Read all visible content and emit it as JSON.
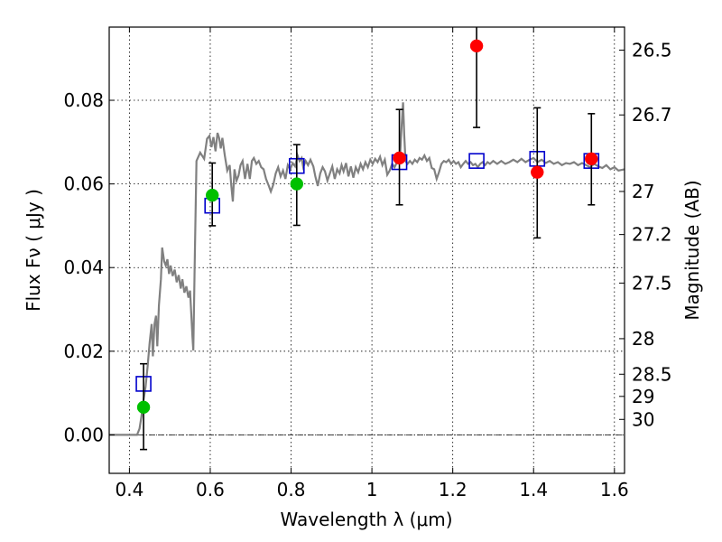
{
  "chart_data": {
    "type": "scatter",
    "title": "",
    "xlabel": "Wavelength  λ (μm)",
    "ylabel": "Flux  Fν  ( μJy )",
    "ylabel_right": "Magnitude (AB)",
    "xlim": [
      0.35,
      1.625
    ],
    "ylim": [
      -0.0092,
      0.0975
    ],
    "grid": true,
    "x_ticks": [
      {
        "value": 0.4,
        "label": "0.4"
      },
      {
        "value": 0.6,
        "label": "0.6"
      },
      {
        "value": 0.8,
        "label": "0.8"
      },
      {
        "value": 1.0,
        "label": "1"
      },
      {
        "value": 1.2,
        "label": "1.2"
      },
      {
        "value": 1.4,
        "label": "1.4"
      },
      {
        "value": 1.6,
        "label": "1.6"
      }
    ],
    "y_ticks": [
      {
        "value": 0.0,
        "label": "0.00"
      },
      {
        "value": 0.02,
        "label": "0.02"
      },
      {
        "value": 0.04,
        "label": "0.04"
      },
      {
        "value": 0.06,
        "label": "0.06"
      },
      {
        "value": 0.08,
        "label": "0.08"
      }
    ],
    "mag_ticks": [
      {
        "flux": 0.092,
        "label": "26.5"
      },
      {
        "flux": 0.0765,
        "label": "26.7"
      },
      {
        "flux": 0.0582,
        "label": "27"
      },
      {
        "flux": 0.0479,
        "label": "27.2"
      },
      {
        "flux": 0.0363,
        "label": "27.5"
      },
      {
        "flux": 0.023,
        "label": "28"
      },
      {
        "flux": 0.0145,
        "label": "28.5"
      },
      {
        "flux": 0.0092,
        "label": "29"
      },
      {
        "flux": 0.0037,
        "label": "30"
      }
    ],
    "zero_line": true,
    "model_color": "#808080",
    "model_spectrum": [
      [
        0.35,
        0.0
      ],
      [
        0.419,
        0.0
      ],
      [
        0.425,
        0.0015
      ],
      [
        0.43,
        0.0045
      ],
      [
        0.435,
        0.0085
      ],
      [
        0.44,
        0.0115
      ],
      [
        0.445,
        0.0162
      ],
      [
        0.45,
        0.022
      ],
      [
        0.455,
        0.0265
      ],
      [
        0.458,
        0.0188
      ],
      [
        0.462,
        0.0265
      ],
      [
        0.466,
        0.0285
      ],
      [
        0.469,
        0.0212
      ],
      [
        0.473,
        0.031
      ],
      [
        0.478,
        0.0372
      ],
      [
        0.481,
        0.0448
      ],
      [
        0.486,
        0.0415
      ],
      [
        0.49,
        0.0405
      ],
      [
        0.494,
        0.042
      ],
      [
        0.498,
        0.0385
      ],
      [
        0.502,
        0.0405
      ],
      [
        0.507,
        0.038
      ],
      [
        0.512,
        0.0395
      ],
      [
        0.517,
        0.0365
      ],
      [
        0.522,
        0.0382
      ],
      [
        0.527,
        0.035
      ],
      [
        0.531,
        0.0372
      ],
      [
        0.536,
        0.034
      ],
      [
        0.541,
        0.0355
      ],
      [
        0.546,
        0.0328
      ],
      [
        0.55,
        0.0345
      ],
      [
        0.556,
        0.0232
      ],
      [
        0.558,
        0.0202
      ],
      [
        0.562,
        0.043
      ],
      [
        0.566,
        0.0655
      ],
      [
        0.575,
        0.0675
      ],
      [
        0.585,
        0.066
      ],
      [
        0.592,
        0.0708
      ],
      [
        0.598,
        0.0715
      ],
      [
        0.603,
        0.0688
      ],
      [
        0.608,
        0.0712
      ],
      [
        0.613,
        0.0678
      ],
      [
        0.618,
        0.0722
      ],
      [
        0.622,
        0.071
      ],
      [
        0.626,
        0.0685
      ],
      [
        0.63,
        0.071
      ],
      [
        0.636,
        0.0668
      ],
      [
        0.642,
        0.0632
      ],
      [
        0.648,
        0.0645
      ],
      [
        0.652,
        0.0598
      ],
      [
        0.656,
        0.0558
      ],
      [
        0.66,
        0.0635
      ],
      [
        0.665,
        0.0608
      ],
      [
        0.67,
        0.062
      ],
      [
        0.675,
        0.0645
      ],
      [
        0.68,
        0.0655
      ],
      [
        0.686,
        0.0612
      ],
      [
        0.692,
        0.0648
      ],
      [
        0.698,
        0.0612
      ],
      [
        0.703,
        0.0655
      ],
      [
        0.708,
        0.0662
      ],
      [
        0.714,
        0.0648
      ],
      [
        0.72,
        0.0655
      ],
      [
        0.726,
        0.064
      ],
      [
        0.732,
        0.0635
      ],
      [
        0.738,
        0.0612
      ],
      [
        0.745,
        0.0595
      ],
      [
        0.75,
        0.0582
      ],
      [
        0.756,
        0.0598
      ],
      [
        0.762,
        0.0625
      ],
      [
        0.768,
        0.064
      ],
      [
        0.774,
        0.0618
      ],
      [
        0.78,
        0.0632
      ],
      [
        0.786,
        0.0612
      ],
      [
        0.792,
        0.0645
      ],
      [
        0.798,
        0.0635
      ],
      [
        0.804,
        0.065
      ],
      [
        0.81,
        0.0642
      ],
      [
        0.816,
        0.0668
      ],
      [
        0.821,
        0.0655
      ],
      [
        0.826,
        0.0662
      ],
      [
        0.83,
        0.064
      ],
      [
        0.836,
        0.0655
      ],
      [
        0.842,
        0.0645
      ],
      [
        0.848,
        0.0658
      ],
      [
        0.855,
        0.0642
      ],
      [
        0.86,
        0.0618
      ],
      [
        0.866,
        0.0595
      ],
      [
        0.872,
        0.0625
      ],
      [
        0.878,
        0.064
      ],
      [
        0.884,
        0.063
      ],
      [
        0.89,
        0.0608
      ],
      [
        0.896,
        0.0625
      ],
      [
        0.902,
        0.0642
      ],
      [
        0.908,
        0.0612
      ],
      [
        0.914,
        0.0635
      ],
      [
        0.92,
        0.0625
      ],
      [
        0.925,
        0.0645
      ],
      [
        0.93,
        0.063
      ],
      [
        0.936,
        0.065
      ],
      [
        0.942,
        0.0618
      ],
      [
        0.948,
        0.0642
      ],
      [
        0.954,
        0.0615
      ],
      [
        0.96,
        0.064
      ],
      [
        0.966,
        0.0628
      ],
      [
        0.972,
        0.0648
      ],
      [
        0.978,
        0.0635
      ],
      [
        0.984,
        0.0652
      ],
      [
        0.99,
        0.064
      ],
      [
        0.996,
        0.0658
      ],
      [
        1.002,
        0.0648
      ],
      [
        1.008,
        0.066
      ],
      [
        1.014,
        0.0652
      ],
      [
        1.02,
        0.0665
      ],
      [
        1.026,
        0.0645
      ],
      [
        1.032,
        0.0658
      ],
      [
        1.038,
        0.0622
      ],
      [
        1.044,
        0.0632
      ],
      [
        1.05,
        0.0648
      ],
      [
        1.056,
        0.064
      ],
      [
        1.062,
        0.0652
      ],
      [
        1.066,
        0.066
      ],
      [
        1.07,
        0.0672
      ],
      [
        1.074,
        0.0745
      ],
      [
        1.077,
        0.0795
      ],
      [
        1.08,
        0.0718
      ],
      [
        1.083,
        0.0655
      ],
      [
        1.088,
        0.0648
      ],
      [
        1.094,
        0.0655
      ],
      [
        1.1,
        0.0648
      ],
      [
        1.106,
        0.0658
      ],
      [
        1.112,
        0.0652
      ],
      [
        1.118,
        0.0662
      ],
      [
        1.124,
        0.0658
      ],
      [
        1.13,
        0.0668
      ],
      [
        1.136,
        0.0655
      ],
      [
        1.142,
        0.0662
      ],
      [
        1.148,
        0.0638
      ],
      [
        1.154,
        0.0635
      ],
      [
        1.16,
        0.0612
      ],
      [
        1.166,
        0.0628
      ],
      [
        1.172,
        0.0648
      ],
      [
        1.178,
        0.0655
      ],
      [
        1.184,
        0.0652
      ],
      [
        1.19,
        0.0658
      ],
      [
        1.196,
        0.0648
      ],
      [
        1.202,
        0.0655
      ],
      [
        1.208,
        0.0648
      ],
      [
        1.214,
        0.0652
      ],
      [
        1.22,
        0.064
      ],
      [
        1.226,
        0.0648
      ],
      [
        1.232,
        0.0655
      ],
      [
        1.238,
        0.0648
      ],
      [
        1.244,
        0.0652
      ],
      [
        1.25,
        0.0645
      ],
      [
        1.256,
        0.0648
      ],
      [
        1.262,
        0.064
      ],
      [
        1.268,
        0.0648
      ],
      [
        1.274,
        0.0652
      ],
      [
        1.28,
        0.0645
      ],
      [
        1.286,
        0.0652
      ],
      [
        1.292,
        0.0648
      ],
      [
        1.3,
        0.0655
      ],
      [
        1.31,
        0.0648
      ],
      [
        1.32,
        0.0655
      ],
      [
        1.33,
        0.0648
      ],
      [
        1.34,
        0.0652
      ],
      [
        1.35,
        0.0658
      ],
      [
        1.36,
        0.0652
      ],
      [
        1.37,
        0.066
      ],
      [
        1.38,
        0.0652
      ],
      [
        1.39,
        0.0658
      ],
      [
        1.4,
        0.0662
      ],
      [
        1.41,
        0.0652
      ],
      [
        1.42,
        0.0658
      ],
      [
        1.43,
        0.065
      ],
      [
        1.44,
        0.0655
      ],
      [
        1.45,
        0.0648
      ],
      [
        1.46,
        0.0652
      ],
      [
        1.47,
        0.0645
      ],
      [
        1.48,
        0.065
      ],
      [
        1.49,
        0.0648
      ],
      [
        1.5,
        0.0652
      ],
      [
        1.51,
        0.0645
      ],
      [
        1.52,
        0.065
      ],
      [
        1.53,
        0.0645
      ],
      [
        1.54,
        0.064
      ],
      [
        1.55,
        0.0648
      ],
      [
        1.56,
        0.0642
      ],
      [
        1.57,
        0.0638
      ],
      [
        1.58,
        0.0645
      ],
      [
        1.59,
        0.0635
      ],
      [
        1.6,
        0.064
      ],
      [
        1.61,
        0.0632
      ],
      [
        1.625,
        0.0635
      ]
    ],
    "observed": [
      {
        "x": 0.435,
        "y": 0.0066,
        "err_low": 0.0101,
        "err_high": 0.0104,
        "color": "#00c000"
      },
      {
        "x": 0.605,
        "y": 0.0573,
        "err_low": 0.0073,
        "err_high": 0.0077,
        "color": "#00c000"
      },
      {
        "x": 0.814,
        "y": 0.06,
        "err_low": 0.0099,
        "err_high": 0.0094,
        "color": "#00c000"
      },
      {
        "x": 1.068,
        "y": 0.0662,
        "err_low": 0.0112,
        "err_high": 0.0116,
        "color": "#ff0000"
      },
      {
        "x": 1.259,
        "y": 0.093,
        "err_low": 0.0195,
        "err_high": 0.0075,
        "color": "#ff0000"
      },
      {
        "x": 1.409,
        "y": 0.0628,
        "err_low": 0.0157,
        "err_high": 0.0154,
        "color": "#ff0000"
      },
      {
        "x": 1.543,
        "y": 0.066,
        "err_low": 0.011,
        "err_high": 0.0108,
        "color": "#ff0000"
      }
    ],
    "model_photometry": {
      "color": "#0000cc",
      "points": [
        {
          "x": 0.435,
          "y": 0.0122
        },
        {
          "x": 0.605,
          "y": 0.0548
        },
        {
          "x": 0.814,
          "y": 0.0643
        },
        {
          "x": 1.068,
          "y": 0.0652
        },
        {
          "x": 1.259,
          "y": 0.0655
        },
        {
          "x": 1.409,
          "y": 0.066
        },
        {
          "x": 1.543,
          "y": 0.0655
        }
      ]
    }
  }
}
